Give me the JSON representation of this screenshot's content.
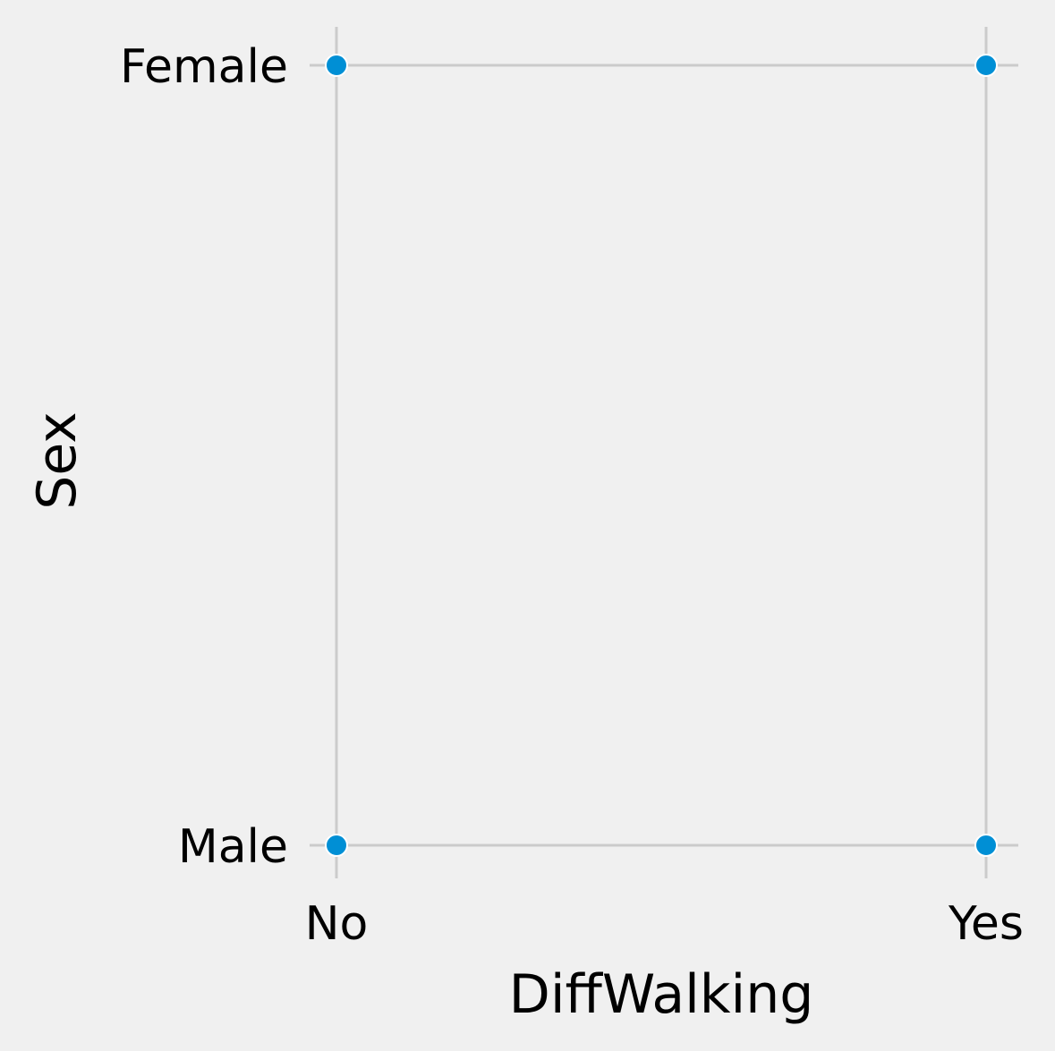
{
  "chart_data": {
    "type": "scatter",
    "title": "",
    "xlabel": "DiffWalking",
    "ylabel": "Sex",
    "x_categories": [
      "No",
      "Yes"
    ],
    "y_categories": [
      "Male",
      "Female"
    ],
    "points": [
      {
        "x": "No",
        "y": "Female"
      },
      {
        "x": "Yes",
        "y": "Female"
      },
      {
        "x": "No",
        "y": "Male"
      },
      {
        "x": "Yes",
        "y": "Male"
      }
    ],
    "grid": true,
    "legend": "none",
    "colors": {
      "point": "#008fd5",
      "grid": "#cbcbcb",
      "background": "#f0f0f0"
    }
  }
}
